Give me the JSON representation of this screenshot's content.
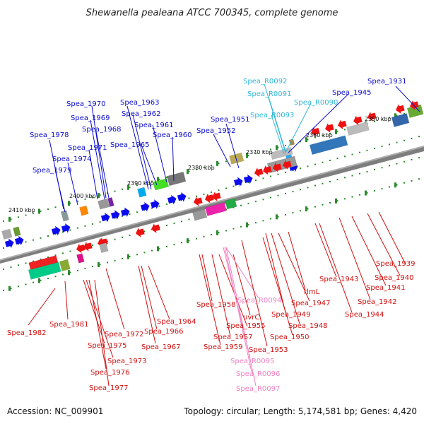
{
  "title": "Shewanella pealeana ATCC 700345, complete genome",
  "footer": {
    "accession": "Accession: NC_009901",
    "topology": "Topology: circular; Length: 5,174,581 bp; Genes: 4,420"
  },
  "colors": {
    "top_label": "#0b0bcc",
    "rna_label": "#2fb7d8",
    "bottom_label": "#d01010",
    "bottom_rna_label": "#f080c0",
    "tick": "#2a8a2a",
    "backbone": "#7a7a7a"
  },
  "scale_labels": [
    "2410 kbp",
    "2400 kbp",
    "2390 kbp",
    "2380 kbp",
    "2370 kbp",
    "2360 kbp",
    "2350 kbp"
  ],
  "top_labels": [
    {
      "text": "Spea_1978",
      "kind": "gene"
    },
    {
      "text": "Spea_1979",
      "kind": "gene"
    },
    {
      "text": "Spea_1974",
      "kind": "gene"
    },
    {
      "text": "Spea_1971",
      "kind": "gene"
    },
    {
      "text": "Spea_1970",
      "kind": "gene"
    },
    {
      "text": "Spea_1969",
      "kind": "gene"
    },
    {
      "text": "Spea_1968",
      "kind": "gene"
    },
    {
      "text": "Spea_1963",
      "kind": "gene"
    },
    {
      "text": "Spea_1962",
      "kind": "gene"
    },
    {
      "text": "Spea_1965",
      "kind": "gene"
    },
    {
      "text": "Spea_1961",
      "kind": "gene"
    },
    {
      "text": "Spea_1960",
      "kind": "gene"
    },
    {
      "text": "Spea_1951",
      "kind": "gene"
    },
    {
      "text": "Spea_1952",
      "kind": "gene"
    },
    {
      "text": "Spea_R0092",
      "kind": "rna"
    },
    {
      "text": "Spea_R0091",
      "kind": "rna"
    },
    {
      "text": "Spea_R0093",
      "kind": "rna"
    },
    {
      "text": "Spea_R0090",
      "kind": "rna"
    },
    {
      "text": "Spea_1945",
      "kind": "gene"
    },
    {
      "text": "Spea_1931",
      "kind": "gene"
    }
  ],
  "bottom_labels": [
    {
      "text": "Spea_1982",
      "kind": "gene"
    },
    {
      "text": "Spea_1981",
      "kind": "gene"
    },
    {
      "text": "Spea_1972",
      "kind": "gene"
    },
    {
      "text": "Spea_1975",
      "kind": "gene"
    },
    {
      "text": "Spea_1973",
      "kind": "gene"
    },
    {
      "text": "Spea_1976",
      "kind": "gene"
    },
    {
      "text": "Spea_1977",
      "kind": "gene"
    },
    {
      "text": "Spea_1966",
      "kind": "gene"
    },
    {
      "text": "Spea_1964",
      "kind": "gene"
    },
    {
      "text": "Spea_1967",
      "kind": "gene"
    },
    {
      "text": "Spea_1958",
      "kind": "gene"
    },
    {
      "text": "Spea_1957",
      "kind": "gene"
    },
    {
      "text": "Spea_1959",
      "kind": "gene"
    },
    {
      "text": "Spea_1955",
      "kind": "gene"
    },
    {
      "text": "uvrC",
      "kind": "gene"
    },
    {
      "text": "Spea_R0094",
      "kind": "rna"
    },
    {
      "text": "Spea_R0095",
      "kind": "rna"
    },
    {
      "text": "Spea_R0096",
      "kind": "rna"
    },
    {
      "text": "Spea_R0097",
      "kind": "rna"
    },
    {
      "text": "Spea_1953",
      "kind": "gene"
    },
    {
      "text": "Spea_1950",
      "kind": "gene"
    },
    {
      "text": "Spea_1948",
      "kind": "gene"
    },
    {
      "text": "Spea_1949",
      "kind": "gene"
    },
    {
      "text": "Spea_1947",
      "kind": "gene"
    },
    {
      "text": "rlmL",
      "kind": "gene"
    },
    {
      "text": "Spea_1944",
      "kind": "gene"
    },
    {
      "text": "Spea_1943",
      "kind": "gene"
    },
    {
      "text": "Spea_1942",
      "kind": "gene"
    },
    {
      "text": "Spea_1941",
      "kind": "gene"
    },
    {
      "text": "Spea_1940",
      "kind": "gene"
    },
    {
      "text": "Spea_1939",
      "kind": "gene"
    }
  ]
}
